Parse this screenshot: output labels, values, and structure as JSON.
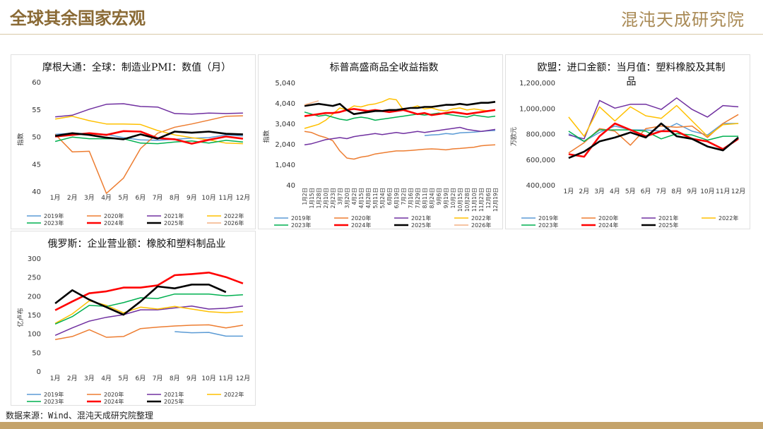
{
  "header": {
    "title": "全球其余国家宏观",
    "logo": "混沌天成研究院"
  },
  "footer": {
    "source": "数据来源：Wind、混沌天成研究院整理"
  },
  "chart_data": [
    {
      "type": "line",
      "title": "摩根大通：全球：制造业PMI：数值（月）",
      "y_label": "指数",
      "categories": [
        "1月",
        "2月",
        "3月",
        "4月",
        "5月",
        "6月",
        "7月",
        "8月",
        "9月",
        "10月",
        "11月",
        "12月"
      ],
      "ylim": [
        40,
        60
      ],
      "yticks": [
        40,
        45,
        50,
        55,
        60
      ],
      "series": [
        {
          "name": "2019年",
          "color": "#5b9bd5",
          "values": [
            50.4,
            50.6,
            50.5,
            50.4,
            49.8,
            49.4,
            49.3,
            49.5,
            49.7,
            49.8,
            50.3,
            50.1
          ]
        },
        {
          "name": "2020年",
          "color": "#ed7d31",
          "values": [
            50.4,
            47.2,
            47.3,
            39.6,
            42.4,
            47.8,
            50.6,
            51.7,
            52.3,
            53.0,
            53.7,
            53.8
          ]
        },
        {
          "name": "2021年",
          "color": "#7030a0",
          "values": [
            53.6,
            53.9,
            55.0,
            55.9,
            56.0,
            55.5,
            55.4,
            54.2,
            54.1,
            54.3,
            54.2,
            54.3
          ]
        },
        {
          "name": "2022年",
          "color": "#ffc000",
          "values": [
            53.2,
            53.7,
            52.9,
            52.3,
            52.3,
            52.2,
            51.1,
            50.3,
            49.8,
            49.4,
            48.8,
            48.7
          ]
        },
        {
          "name": "2023年",
          "color": "#00b050",
          "values": [
            49.1,
            49.9,
            49.6,
            49.6,
            49.6,
            48.8,
            48.7,
            49.0,
            49.2,
            48.8,
            49.3,
            49.0
          ]
        },
        {
          "name": "2024年",
          "color": "#ff0000",
          "values": [
            50.0,
            50.3,
            50.6,
            50.3,
            51.0,
            50.9,
            49.7,
            49.5,
            48.7,
            49.4,
            50.0,
            49.6
          ]
        },
        {
          "name": "2025年",
          "color": "#000000",
          "values": [
            50.1,
            50.6,
            50.3,
            49.8,
            49.5,
            50.4,
            49.6,
            50.9,
            50.7,
            50.9,
            50.5,
            50.4
          ]
        },
        {
          "name": "2026年",
          "color": "#f4b183",
          "values": [
            50.4,
            null,
            null,
            null,
            null,
            null,
            null,
            null,
            null,
            null,
            null,
            null
          ]
        }
      ]
    },
    {
      "type": "line",
      "title": "标普高盛商品全收益指数",
      "y_label": "指数",
      "categories": [
        "1月2日",
        "1月15日",
        "1月28日",
        "2月10日",
        "2月23日",
        "3月7日",
        "3月20日",
        "4月2日",
        "4月15日",
        "4月28日",
        "5月11日",
        "5月24日",
        "6月6日",
        "6月19日",
        "7月2日",
        "7月16日",
        "7月29日",
        "8月11日",
        "8月24日",
        "9月6日",
        "9月19日",
        "10月2日",
        "10月15日",
        "10月28日",
        "11月10日",
        "11月23日",
        "12月6日",
        "12月19日"
      ],
      "ylim": [
        40,
        5040
      ],
      "yticks": [
        40,
        {
          "value": 1040,
          "label": "1,040"
        },
        {
          "value": 2040,
          "label": "2,040"
        },
        {
          "value": 3040,
          "label": "3,040"
        },
        {
          "value": 4040,
          "label": "4,040"
        },
        {
          "value": 5040,
          "label": "5,040"
        }
      ],
      "series": [
        {
          "name": "2019年",
          "color": "#5b9bd5",
          "values": [
            null,
            null,
            null,
            null,
            null,
            null,
            null,
            null,
            null,
            null,
            null,
            null,
            null,
            null,
            null,
            null,
            null,
            2450,
            2480,
            2500,
            2550,
            2520,
            2580,
            2600,
            2620,
            2650,
            2680,
            2700
          ]
        },
        {
          "name": "2020年",
          "color": "#ed7d31",
          "values": [
            2650,
            2600,
            2450,
            2350,
            2200,
            1700,
            1350,
            1300,
            1400,
            1450,
            1550,
            1600,
            1650,
            1700,
            1700,
            1720,
            1750,
            1780,
            1800,
            1780,
            1750,
            1800,
            1820,
            1850,
            1880,
            1950,
            1980,
            2000
          ]
        },
        {
          "name": "2021年",
          "color": "#7030a0",
          "values": [
            2000,
            2050,
            2150,
            2250,
            2300,
            2350,
            2300,
            2400,
            2450,
            2500,
            2550,
            2500,
            2550,
            2600,
            2550,
            2600,
            2650,
            2600,
            2650,
            2700,
            2750,
            2800,
            2850,
            2750,
            2700,
            2650,
            2700,
            2750
          ]
        },
        {
          "name": "2022年",
          "color": "#ffc000",
          "values": [
            2800,
            2900,
            3000,
            3200,
            3500,
            3800,
            3700,
            3900,
            3850,
            3950,
            4000,
            4100,
            4250,
            4200,
            3700,
            3800,
            3900,
            3750,
            3800,
            3700,
            3650,
            3750,
            3800,
            3700,
            3750,
            3700,
            3650,
            3700
          ]
        },
        {
          "name": "2023年",
          "color": "#00b050",
          "values": [
            3600,
            3500,
            3400,
            3450,
            3350,
            3250,
            3200,
            3300,
            3350,
            3300,
            3200,
            3250,
            3300,
            3350,
            3400,
            3450,
            3500,
            3450,
            3500,
            3550,
            3500,
            3450,
            3400,
            3350,
            3450,
            3400,
            3350,
            3400
          ]
        },
        {
          "name": "2024年",
          "color": "#ff0000",
          "values": [
            3400,
            3450,
            3500,
            3550,
            3550,
            3600,
            3700,
            3750,
            3700,
            3650,
            3700,
            3650,
            3600,
            3650,
            3700,
            3600,
            3500,
            3550,
            3450,
            3500,
            3550,
            3600,
            3550,
            3500,
            3550,
            3600,
            3650,
            3700
          ]
        },
        {
          "name": "2025年",
          "color": "#000000",
          "values": [
            3900,
            3950,
            4000,
            3950,
            3900,
            4000,
            3700,
            3500,
            3550,
            3600,
            3650,
            3650,
            3700,
            3700,
            3750,
            3800,
            3800,
            3850,
            3850,
            3900,
            3950,
            3950,
            4000,
            3950,
            4000,
            4050,
            4050,
            4100
          ]
        },
        {
          "name": "2026年",
          "color": "#f4b183",
          "values": [
            3950,
            4050,
            4150,
            null,
            null,
            null,
            null,
            null,
            null,
            null,
            null,
            null,
            null,
            null,
            null,
            null,
            null,
            null,
            null,
            null,
            null,
            null,
            null,
            null,
            null,
            null,
            null,
            null
          ]
        }
      ]
    },
    {
      "type": "line",
      "title": "欧盟：进口金额：当月值：塑料橡胶及其制品",
      "y_label": "万欧元",
      "categories": [
        "1月",
        "2月",
        "3月",
        "4月",
        "5月",
        "6月",
        "7月",
        "8月",
        "9月",
        "10月",
        "11月",
        "12月"
      ],
      "ylim": [
        400000,
        1200000
      ],
      "yticks": [
        {
          "value": 400000,
          "label": "400,000"
        },
        {
          "value": 600000,
          "label": "600,000"
        },
        {
          "value": 800000,
          "label": "800,000"
        },
        {
          "value": 1000000,
          "label": "1,000,000"
        },
        {
          "value": 1200000,
          "label": "1,200,000"
        }
      ],
      "series": [
        {
          "name": "2019年",
          "color": "#5b9bd5",
          "values": [
            800000,
            740000,
            810000,
            860000,
            830000,
            830000,
            820000,
            880000,
            820000,
            790000,
            880000,
            880000
          ]
        },
        {
          "name": "2020年",
          "color": "#ed7d31",
          "values": [
            650000,
            730000,
            840000,
            820000,
            710000,
            840000,
            860000,
            850000,
            860000,
            770000,
            880000,
            950000
          ]
        },
        {
          "name": "2021年",
          "color": "#7030a0",
          "values": [
            790000,
            760000,
            1060000,
            1000000,
            1030000,
            1030000,
            990000,
            1080000,
            990000,
            930000,
            1020000,
            1010000
          ]
        },
        {
          "name": "2022年",
          "color": "#ffc000",
          "values": [
            930000,
            780000,
            1010000,
            900000,
            1010000,
            940000,
            920000,
            1020000,
            900000,
            780000,
            870000,
            880000
          ]
        },
        {
          "name": "2023年",
          "color": "#00b050",
          "values": [
            820000,
            740000,
            830000,
            830000,
            830000,
            820000,
            760000,
            800000,
            790000,
            750000,
            780000,
            780000
          ]
        },
        {
          "name": "2024年",
          "color": "#ff0000",
          "values": [
            640000,
            620000,
            780000,
            880000,
            830000,
            780000,
            820000,
            820000,
            760000,
            740000,
            680000,
            760000
          ]
        },
        {
          "name": "2025年",
          "color": "#000000",
          "values": [
            610000,
            660000,
            740000,
            770000,
            810000,
            770000,
            880000,
            780000,
            760000,
            700000,
            670000,
            770000
          ]
        }
      ]
    },
    {
      "type": "line",
      "title": "俄罗斯：企业营业额：橡胶和塑料制品业",
      "y_label": "亿卢布",
      "categories": [
        "1月",
        "2月",
        "3月",
        "4月",
        "5月",
        "6月",
        "7月",
        "8月",
        "9月",
        "10月",
        "11月",
        "12月"
      ],
      "ylim": [
        0,
        300
      ],
      "yticks": [
        0,
        50,
        100,
        150,
        200,
        250,
        300
      ],
      "series": [
        {
          "name": "2019年",
          "color": "#5b9bd5",
          "values": [
            null,
            null,
            null,
            null,
            null,
            null,
            null,
            105,
            102,
            103,
            93,
            93
          ]
        },
        {
          "name": "2020年",
          "color": "#ed7d31",
          "values": [
            84,
            92,
            110,
            90,
            92,
            113,
            117,
            120,
            122,
            123,
            115,
            122
          ]
        },
        {
          "name": "2021年",
          "color": "#7030a0",
          "values": [
            95,
            115,
            133,
            143,
            150,
            163,
            163,
            168,
            173,
            165,
            167,
            173
          ]
        },
        {
          "name": "2022年",
          "color": "#ffc000",
          "values": [
            127,
            152,
            187,
            175,
            155,
            170,
            165,
            172,
            165,
            158,
            155,
            158
          ]
        },
        {
          "name": "2023年",
          "color": "#00b050",
          "values": [
            125,
            145,
            175,
            172,
            182,
            195,
            193,
            205,
            205,
            205,
            200,
            203
          ]
        },
        {
          "name": "2024年",
          "color": "#ff0000",
          "values": [
            162,
            185,
            207,
            212,
            222,
            222,
            228,
            255,
            258,
            262,
            250,
            233
          ]
        },
        {
          "name": "2025年",
          "color": "#000000",
          "values": [
            180,
            215,
            190,
            170,
            150,
            185,
            225,
            220,
            230,
            230,
            210,
            null
          ]
        }
      ]
    }
  ]
}
